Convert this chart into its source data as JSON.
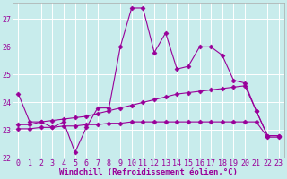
{
  "title": "",
  "xlabel": "Windchill (Refroidissement éolien,°C)",
  "ylabel": "",
  "background_color": "#c8ecec",
  "grid_color": "#b0d8d8",
  "line_color": "#990099",
  "xlim": [
    -0.5,
    23.5
  ],
  "ylim": [
    22.0,
    27.6
  ],
  "yticks": [
    22,
    23,
    24,
    25,
    26,
    27
  ],
  "xticks": [
    0,
    1,
    2,
    3,
    4,
    5,
    6,
    7,
    8,
    9,
    10,
    11,
    12,
    13,
    14,
    15,
    16,
    17,
    18,
    19,
    20,
    21,
    22,
    23
  ],
  "hours": [
    0,
    1,
    2,
    3,
    4,
    5,
    6,
    7,
    8,
    9,
    10,
    11,
    12,
    13,
    14,
    15,
    16,
    17,
    18,
    19,
    20,
    21,
    22,
    23
  ],
  "line1": [
    24.3,
    23.3,
    23.3,
    23.1,
    23.3,
    22.2,
    23.1,
    23.8,
    23.8,
    26.0,
    27.4,
    27.4,
    25.8,
    26.5,
    25.2,
    25.3,
    26.0,
    26.0,
    25.7,
    24.8,
    24.7,
    23.7,
    22.8,
    22.8
  ],
  "line2": [
    23.2,
    23.2,
    23.3,
    23.35,
    23.4,
    23.45,
    23.5,
    23.6,
    23.7,
    23.8,
    23.9,
    24.0,
    24.1,
    24.2,
    24.3,
    24.35,
    24.4,
    24.45,
    24.5,
    24.55,
    24.6,
    23.7,
    22.8,
    22.8
  ],
  "line3": [
    23.05,
    23.05,
    23.1,
    23.1,
    23.15,
    23.15,
    23.2,
    23.2,
    23.25,
    23.25,
    23.3,
    23.3,
    23.3,
    23.3,
    23.3,
    23.3,
    23.3,
    23.3,
    23.3,
    23.3,
    23.3,
    23.3,
    22.75,
    22.75
  ],
  "marker": "D",
  "markersize": 2.5,
  "linewidth": 0.8,
  "tick_fontsize": 6,
  "label_fontsize": 6.5
}
